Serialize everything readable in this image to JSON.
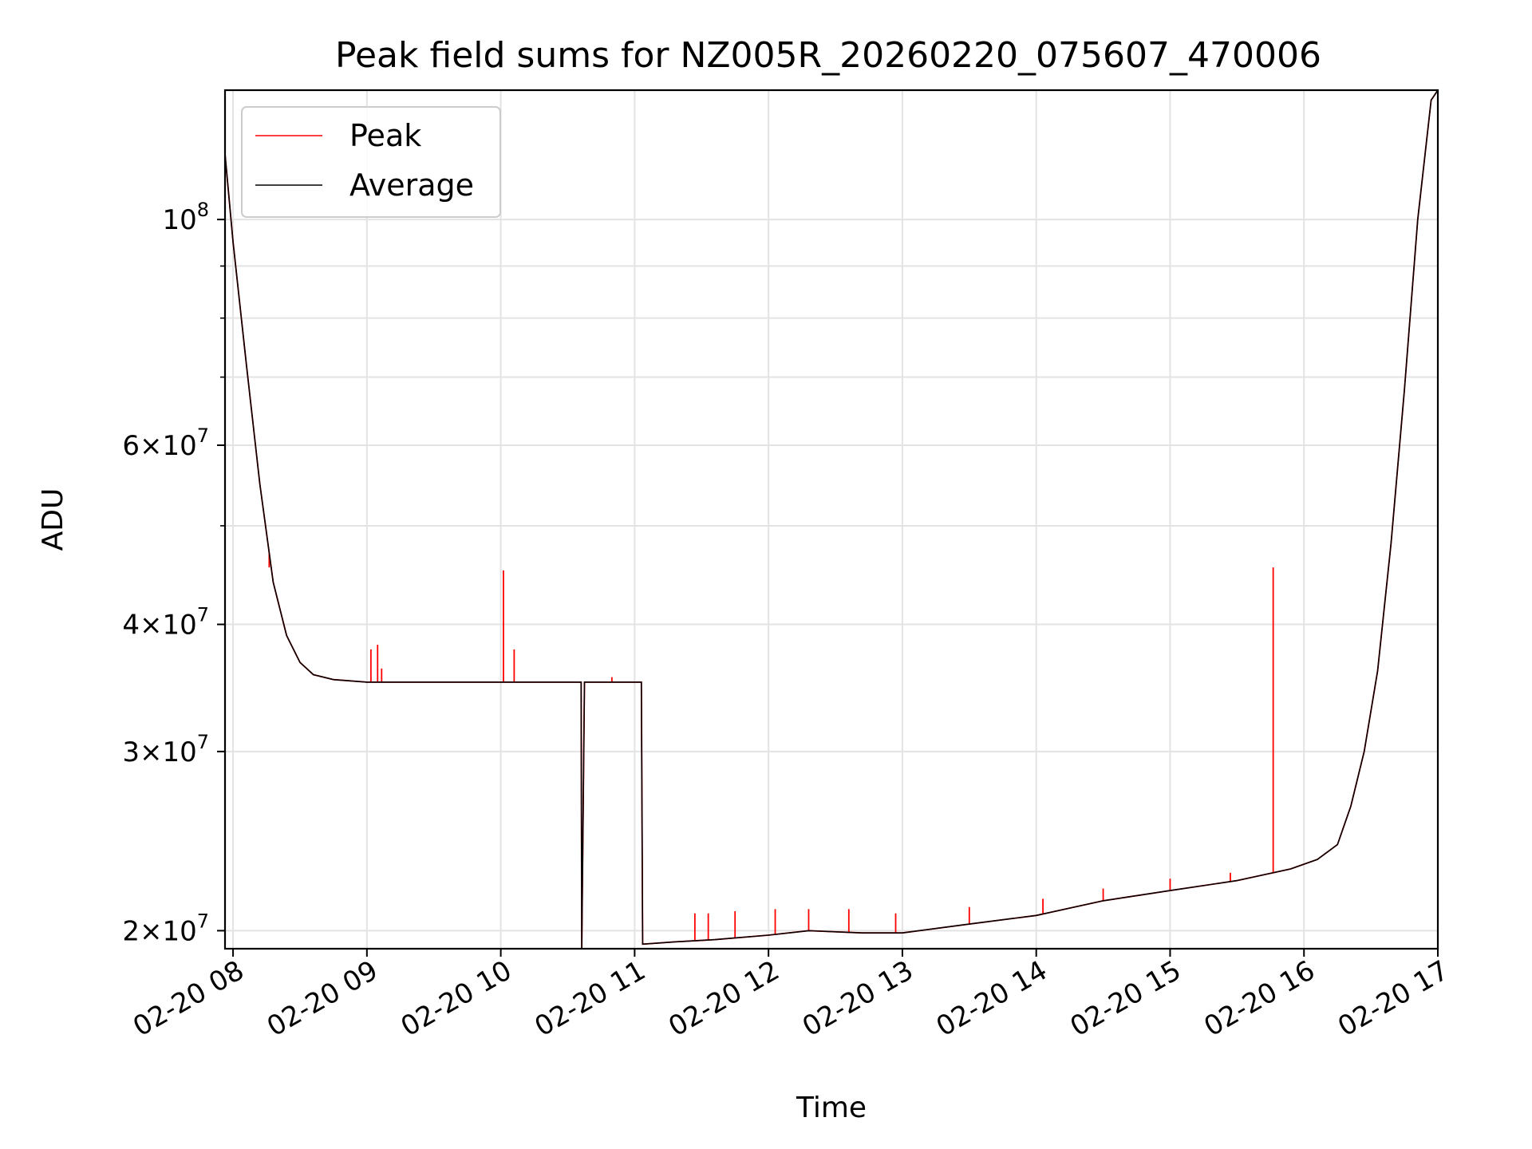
{
  "chart_data": {
    "type": "line",
    "title": "Peak field sums for NZ005R_20260220_075607_470006",
    "xlabel": "Time",
    "ylabel": "ADU",
    "y_scale": "log",
    "ylim": [
      19200000,
      134000000
    ],
    "xlim_hours": [
      7.94,
      17.0
    ],
    "grid": true,
    "legend_position": "upper-left",
    "x_ticks": [
      {
        "value": 8,
        "label": "02-20 08"
      },
      {
        "value": 9,
        "label": "02-20 09"
      },
      {
        "value": 10,
        "label": "02-20 10"
      },
      {
        "value": 11,
        "label": "02-20 11"
      },
      {
        "value": 12,
        "label": "02-20 12"
      },
      {
        "value": 13,
        "label": "02-20 13"
      },
      {
        "value": 14,
        "label": "02-20 14"
      },
      {
        "value": 15,
        "label": "02-20 15"
      },
      {
        "value": 16,
        "label": "02-20 16"
      },
      {
        "value": 17,
        "label": "02-20 17"
      }
    ],
    "y_ticks": [
      {
        "value": 20000000,
        "mantissa": "2",
        "exponent": "7",
        "kind": "sci"
      },
      {
        "value": 30000000,
        "mantissa": "3",
        "exponent": "7",
        "kind": "sci"
      },
      {
        "value": 40000000,
        "mantissa": "4",
        "exponent": "7",
        "kind": "sci"
      },
      {
        "value": 60000000,
        "mantissa": "6",
        "exponent": "7",
        "kind": "sci"
      },
      {
        "value": 100000000,
        "mantissa": "",
        "exponent": "8",
        "kind": "pow"
      }
    ],
    "y_minor_gridlines": [
      50000000,
      70000000,
      80000000,
      90000000
    ],
    "series": [
      {
        "name": "Peak",
        "color": "#ff0000",
        "spikes": [
          [
            8.27,
            45500000
          ],
          [
            9.03,
            37800000
          ],
          [
            9.08,
            38200000
          ],
          [
            9.11,
            36200000
          ],
          [
            10.02,
            45200000
          ],
          [
            10.1,
            37800000
          ],
          [
            10.83,
            35500000
          ],
          [
            11.45,
            20800000
          ],
          [
            11.55,
            20800000
          ],
          [
            11.75,
            20900000
          ],
          [
            12.05,
            21000000
          ],
          [
            12.3,
            21000000
          ],
          [
            12.6,
            21000000
          ],
          [
            12.95,
            20800000
          ],
          [
            13.5,
            21100000
          ],
          [
            14.05,
            21500000
          ],
          [
            14.5,
            22000000
          ],
          [
            15.0,
            22500000
          ],
          [
            15.45,
            22800000
          ],
          [
            15.77,
            45500000
          ]
        ]
      },
      {
        "name": "Average",
        "color": "#000000",
        "points": [
          [
            7.94,
            116000000
          ],
          [
            8.0,
            95000000
          ],
          [
            8.1,
            72000000
          ],
          [
            8.2,
            55000000
          ],
          [
            8.3,
            44000000
          ],
          [
            8.4,
            39000000
          ],
          [
            8.5,
            36700000
          ],
          [
            8.6,
            35700000
          ],
          [
            8.75,
            35300000
          ],
          [
            9.0,
            35100000
          ],
          [
            9.5,
            35100000
          ],
          [
            10.0,
            35100000
          ],
          [
            10.55,
            35100000
          ],
          [
            10.6,
            35100000
          ],
          [
            10.605,
            19200000
          ],
          [
            10.625,
            35100000
          ],
          [
            11.05,
            35100000
          ],
          [
            11.06,
            19400000
          ],
          [
            11.3,
            19500000
          ],
          [
            11.6,
            19600000
          ],
          [
            12.0,
            19800000
          ],
          [
            12.3,
            20000000
          ],
          [
            12.7,
            19900000
          ],
          [
            13.0,
            19900000
          ],
          [
            13.5,
            20300000
          ],
          [
            14.0,
            20700000
          ],
          [
            14.5,
            21400000
          ],
          [
            15.0,
            21900000
          ],
          [
            15.5,
            22400000
          ],
          [
            15.9,
            23000000
          ],
          [
            16.1,
            23500000
          ],
          [
            16.25,
            24300000
          ],
          [
            16.35,
            26500000
          ],
          [
            16.45,
            30000000
          ],
          [
            16.55,
            36000000
          ],
          [
            16.65,
            48000000
          ],
          [
            16.75,
            68000000
          ],
          [
            16.85,
            100000000
          ],
          [
            16.95,
            131000000
          ],
          [
            17.0,
            134000000
          ]
        ]
      }
    ]
  }
}
